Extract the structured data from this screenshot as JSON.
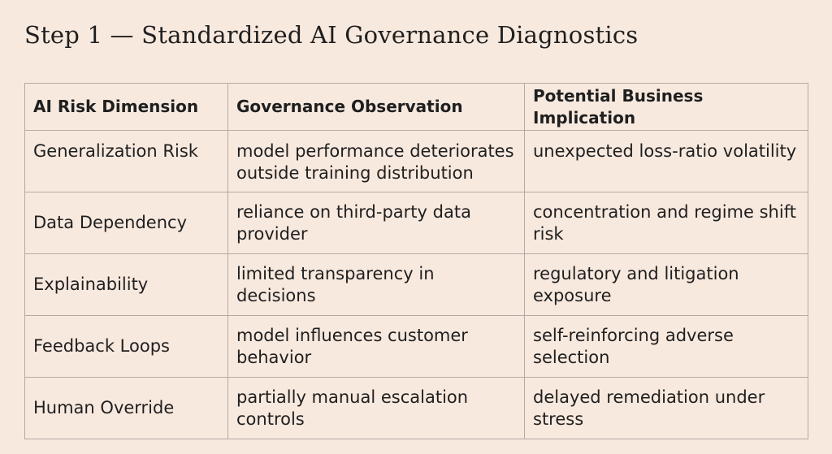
{
  "title": "Step 1 — Standardized AI Governance Diagnostics",
  "table": {
    "headers": [
      "AI Risk Dimension",
      "Governance Observation",
      "Potential Business Implication"
    ],
    "rows": [
      {
        "dimension": "Generalization Risk",
        "observation": "model performance deteriorates outside training distribution",
        "implication": "unexpected loss-ratio volatility"
      },
      {
        "dimension": "Data Dependency",
        "observation": "reliance on third-party data provider",
        "implication": "concentration and regime shift risk"
      },
      {
        "dimension": "Explainability",
        "observation": "limited transparency in decisions",
        "implication": "regulatory and litigation exposure"
      },
      {
        "dimension": "Feedback Loops",
        "observation": "model influences customer behavior",
        "implication": "self-reinforcing adverse selection"
      },
      {
        "dimension": "Human Override",
        "observation": "partially manual escalation controls",
        "implication": "delayed remediation under stress"
      }
    ]
  }
}
